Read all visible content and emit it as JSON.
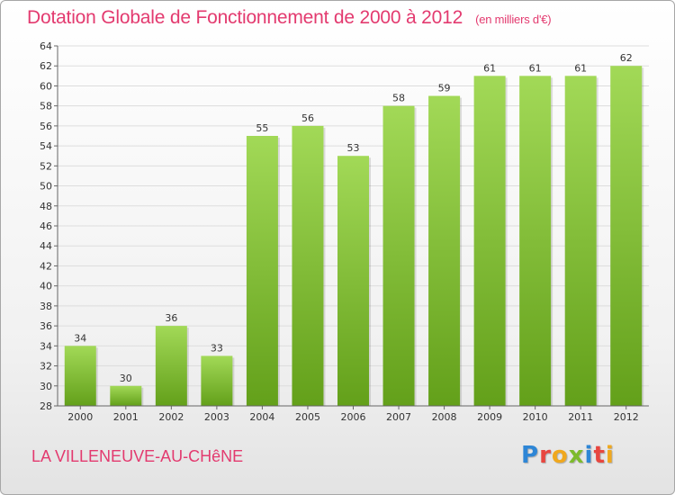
{
  "title": "Dotation Globale de Fonctionnement de 2000 à 2012",
  "subtitle": "(en milliers d'€)",
  "commune": "LA VILLENEUVE-AU-CHêNE",
  "logo": {
    "letters": [
      {
        "char": "P",
        "color": "#2e86d6"
      },
      {
        "char": "r",
        "color": "#e8463f"
      },
      {
        "char": "o",
        "color": "#f0a81e"
      },
      {
        "char": "x",
        "color": "#7dbb2c"
      },
      {
        "char": "i",
        "color": "#2e86d6"
      },
      {
        "char": "t",
        "color": "#e8463f"
      },
      {
        "char": "i",
        "color": "#f0a81e"
      }
    ]
  },
  "colors": {
    "title": "#e33a6f",
    "bar_light": "#a2d957",
    "bar_dark": "#63a01a",
    "grid": "#dddddd"
  },
  "chart_data": {
    "type": "bar",
    "categories": [
      "2000",
      "2001",
      "2002",
      "2003",
      "2004",
      "2005",
      "2006",
      "2007",
      "2008",
      "2009",
      "2010",
      "2011",
      "2012"
    ],
    "values": [
      34,
      30,
      36,
      33,
      55,
      56,
      53,
      58,
      59,
      61,
      61,
      61,
      62
    ],
    "title": "Dotation Globale de Fonctionnement de 2000 à 2012",
    "subtitle": "(en milliers d'€)",
    "xlabel": "",
    "ylabel": "",
    "ylim": [
      28,
      64
    ],
    "yticks": [
      28,
      30,
      32,
      34,
      36,
      38,
      40,
      42,
      44,
      46,
      48,
      50,
      52,
      54,
      56,
      58,
      60,
      62,
      64
    ],
    "grid": true,
    "legend": "none"
  }
}
